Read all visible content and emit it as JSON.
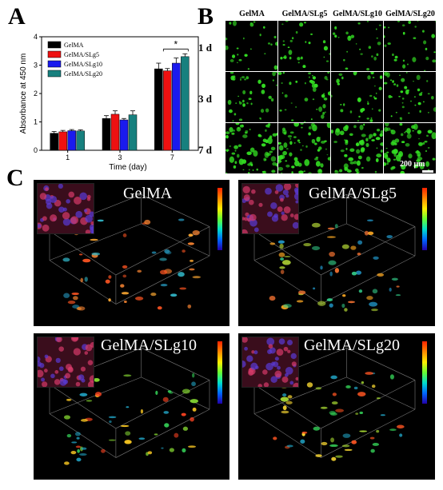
{
  "panels": {
    "a_label": "A",
    "b_label": "B",
    "c_label": "C"
  },
  "chart_data": {
    "type": "bar",
    "categories": [
      "1",
      "3",
      "7"
    ],
    "series": [
      {
        "name": "GelMA",
        "color": "#000000",
        "values": [
          0.6,
          1.12,
          2.87
        ],
        "errors": [
          0.06,
          0.1,
          0.2
        ]
      },
      {
        "name": "GelMA/SLg5",
        "color": "#ee1111",
        "values": [
          0.65,
          1.27,
          2.8
        ],
        "errors": [
          0.05,
          0.12,
          0.08
        ]
      },
      {
        "name": "GelMA/SLg10",
        "color": "#1a1aee",
        "values": [
          0.69,
          1.07,
          3.07
        ],
        "errors": [
          0.04,
          0.05,
          0.18
        ]
      },
      {
        "name": "GelMA/SLg20",
        "color": "#17807e",
        "values": [
          0.68,
          1.25,
          3.3
        ],
        "errors": [
          0.04,
          0.14,
          0.1
        ]
      }
    ],
    "xlabel": "Time (day)",
    "ylabel": "Absorbance at 450 nm",
    "ylim": [
      0,
      4
    ],
    "yticks": [
      "0",
      "1",
      "2",
      "3",
      "4"
    ],
    "significance": "*",
    "legend_position": "top-left",
    "grid": false
  },
  "panel_b": {
    "columns": [
      "GelMA",
      "GelMA/SLg5",
      "GelMA/SLg10",
      "GelMA/SLg20"
    ],
    "rows": [
      "1 d",
      "3 d",
      "7 d"
    ],
    "scale_label": "200 μm",
    "cell_color": "#33dd22",
    "density": [
      [
        0.35,
        0.4,
        0.35,
        0.4
      ],
      [
        0.55,
        0.55,
        0.5,
        0.6
      ],
      [
        0.95,
        0.95,
        0.85,
        0.9
      ]
    ]
  },
  "panel_c": {
    "titles": [
      "GelMA",
      "GelMA/SLg5",
      "GelMA/SLg10",
      "GelMA/SLg20"
    ]
  }
}
